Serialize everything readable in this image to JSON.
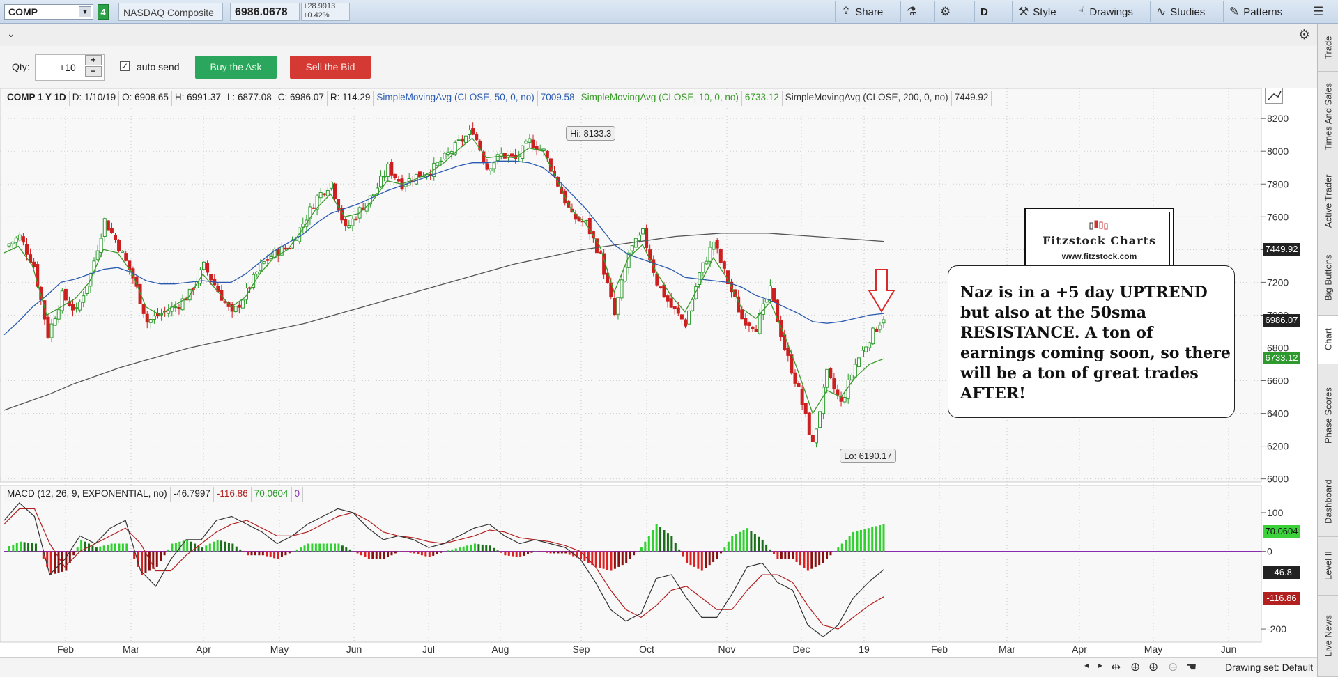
{
  "topbar": {
    "symbol": "COMP",
    "link_number": "4",
    "company_name": "NASDAQ Composite",
    "last_price": "6986.0678",
    "change_abs": "+28.9913",
    "change_pct": "+0.42%",
    "share_label": "Share",
    "period_label": "D",
    "style_label": "Style",
    "drawings_label": "Drawings",
    "studies_label": "Studies",
    "patterns_label": "Patterns"
  },
  "trade": {
    "qty_label": "Qty:",
    "qty_value": "+10",
    "auto_send_label": "auto send",
    "buy_label": "Buy the Ask",
    "sell_label": "Sell the Bid"
  },
  "legend": {
    "title": "COMP 1 Y 1D",
    "date": "D: 1/10/19",
    "open": "O: 6908.65",
    "high": "H: 6991.37",
    "low": "L: 6877.08",
    "close": "C: 6986.07",
    "range": "R: 114.29",
    "sma50_label": "SimpleMovingAvg (CLOSE, 50, 0, no)",
    "sma50_value": "7009.58",
    "sma10_label": "SimpleMovingAvg (CLOSE, 10, 0, no)",
    "sma10_value": "6733.12",
    "sma200_label": "SimpleMovingAvg (CLOSE, 200, 0, no)",
    "sma200_value": "7449.92"
  },
  "macd_legend": {
    "label": "MACD (12, 26, 9, EXPONENTIAL, no)",
    "value": "-46.7997",
    "avg": "-116.86",
    "diff": "70.0604",
    "zero": "0"
  },
  "annotations": {
    "hi_label": "Hi: 8133.3",
    "lo_label": "Lo: 6190.17",
    "note": "Naz is in a +5 day UPTREND but also at the 50sma RESISTANCE.    A ton of earnings coming soon, so there will  be a ton of great trades AFTER!",
    "logo_title": "Fitzstock Charts",
    "logo_url": "www.fitzstock.com"
  },
  "price_tags": {
    "sma200": "7449.92",
    "last": "6986.07",
    "sma10": "6733.12",
    "macd_diff": "70.0604",
    "macd_value": "-46.8",
    "macd_avg": "-116.86"
  },
  "sidebar_tabs": [
    "Trade",
    "Times And Sales",
    "Active Trader",
    "Big Buttons",
    "Chart",
    "Phase Scores",
    "Dashboard",
    "Level II",
    "Live News"
  ],
  "bottombar": {
    "drawing_set": "Drawing set: Default"
  },
  "colors": {
    "sma50": "#2a5bb0",
    "sma10": "#3a9a2a",
    "sma200": "#555555",
    "up_candle": "#2a9a2a",
    "down_candle": "#cc1f1f",
    "arrow": "#d92b2b"
  },
  "chart_data": [
    {
      "type": "candlestick",
      "title": "COMP 1 Y 1D",
      "x_ticks": [
        "Feb",
        "Mar",
        "Apr",
        "May",
        "Jun",
        "Jul",
        "Aug",
        "Sep",
        "Oct",
        "Nov",
        "Dec",
        "19",
        "Feb",
        "Mar",
        "Apr",
        "May",
        "Jun"
      ],
      "y_ticks": [
        8200,
        8000,
        7800,
        7600,
        7400,
        7200,
        7000,
        6800,
        6600,
        6400,
        6200,
        6000
      ],
      "ylim": [
        5990,
        8290
      ],
      "close_path": [
        7420,
        7480,
        7300,
        6880,
        7120,
        7020,
        7250,
        7580,
        7420,
        7230,
        6960,
        7010,
        7050,
        7130,
        7300,
        7150,
        7000,
        7140,
        7300,
        7380,
        7420,
        7560,
        7720,
        7810,
        7520,
        7640,
        7740,
        7900,
        7800,
        7850,
        7880,
        7960,
        8050,
        8130,
        7900,
        7980,
        7950,
        8060,
        8000,
        7800,
        7600,
        7560,
        7360,
        7000,
        7380,
        7500,
        7200,
        7050,
        6950,
        7250,
        7450,
        7200,
        6980,
        6930,
        7150,
        6800,
        6540,
        6210,
        6640,
        6460,
        6700,
        6860,
        6990
      ],
      "sma10": [
        7380,
        7420,
        7300,
        7000,
        7050,
        7100,
        7200,
        7400,
        7380,
        7260,
        7050,
        7000,
        7060,
        7110,
        7250,
        7150,
        7050,
        7110,
        7250,
        7350,
        7400,
        7520,
        7650,
        7740,
        7600,
        7620,
        7700,
        7820,
        7800,
        7830,
        7870,
        7930,
        8010,
        8080,
        7960,
        7970,
        7960,
        8020,
        8000,
        7820,
        7640,
        7560,
        7420,
        7140,
        7350,
        7430,
        7260,
        7120,
        7020,
        7180,
        7350,
        7220,
        7040,
        6980,
        7080,
        6880,
        6650,
        6400,
        6540,
        6500,
        6620,
        6700,
        6733
      ],
      "sma50": [
        6880,
        6960,
        7050,
        7120,
        7200,
        7220,
        7250,
        7280,
        7290,
        7260,
        7210,
        7190,
        7190,
        7200,
        7210,
        7200,
        7200,
        7250,
        7320,
        7390,
        7440,
        7490,
        7560,
        7620,
        7650,
        7680,
        7720,
        7760,
        7790,
        7820,
        7850,
        7880,
        7910,
        7930,
        7930,
        7940,
        7940,
        7930,
        7900,
        7830,
        7740,
        7650,
        7540,
        7430,
        7370,
        7340,
        7310,
        7280,
        7230,
        7220,
        7210,
        7200,
        7170,
        7120,
        7090,
        7050,
        7010,
        6960,
        6950,
        6960,
        6980,
        7000,
        7010
      ],
      "sma200": [
        6420,
        6470,
        6520,
        6580,
        6630,
        6680,
        6720,
        6760,
        6800,
        6830,
        6860,
        6890,
        6920,
        6950,
        6990,
        7030,
        7070,
        7110,
        7150,
        7190,
        7230,
        7270,
        7310,
        7340,
        7370,
        7400,
        7420,
        7440,
        7460,
        7480,
        7490,
        7500,
        7500,
        7500,
        7490,
        7480,
        7470,
        7460,
        7450
      ],
      "hi": 8133.3,
      "lo": 6190.17
    },
    {
      "type": "macd",
      "title": "MACD (12, 26, 9, EXPONENTIAL, no)",
      "y_ticks": [
        100,
        0,
        -200
      ],
      "ylim": [
        -225,
        125
      ],
      "macd_path": [
        80,
        125,
        90,
        -60,
        -20,
        40,
        20,
        60,
        80,
        -50,
        -90,
        -20,
        30,
        30,
        80,
        90,
        70,
        50,
        20,
        40,
        70,
        90,
        110,
        100,
        60,
        30,
        40,
        30,
        10,
        20,
        40,
        60,
        70,
        40,
        20,
        30,
        20,
        10,
        -20,
        -80,
        -150,
        -180,
        -160,
        -70,
        -60,
        -120,
        -170,
        -170,
        -110,
        -40,
        -30,
        -80,
        -100,
        -190,
        -220,
        -190,
        -120,
        -80,
        -47
      ],
      "signal_path": [
        70,
        110,
        110,
        20,
        -40,
        0,
        20,
        40,
        60,
        20,
        -50,
        -50,
        -10,
        20,
        50,
        70,
        80,
        60,
        40,
        40,
        50,
        70,
        90,
        100,
        80,
        50,
        40,
        35,
        25,
        20,
        30,
        40,
        55,
        50,
        35,
        30,
        25,
        15,
        0,
        -40,
        -100,
        -150,
        -170,
        -140,
        -100,
        -90,
        -120,
        -150,
        -150,
        -100,
        -60,
        -60,
        -80,
        -140,
        -190,
        -200,
        -170,
        -140,
        -117
      ],
      "hist_path": [
        10,
        25,
        20,
        -60,
        -50,
        30,
        10,
        20,
        20,
        -60,
        -40,
        20,
        30,
        10,
        30,
        20,
        -10,
        -10,
        -20,
        0,
        20,
        20,
        20,
        0,
        -20,
        -20,
        0,
        -5,
        -15,
        0,
        10,
        20,
        15,
        -10,
        -15,
        0,
        -5,
        -5,
        -20,
        -40,
        -50,
        -30,
        10,
        70,
        40,
        -30,
        -50,
        -20,
        40,
        60,
        30,
        -20,
        -20,
        -50,
        -30,
        10,
        50,
        60,
        70
      ]
    }
  ]
}
